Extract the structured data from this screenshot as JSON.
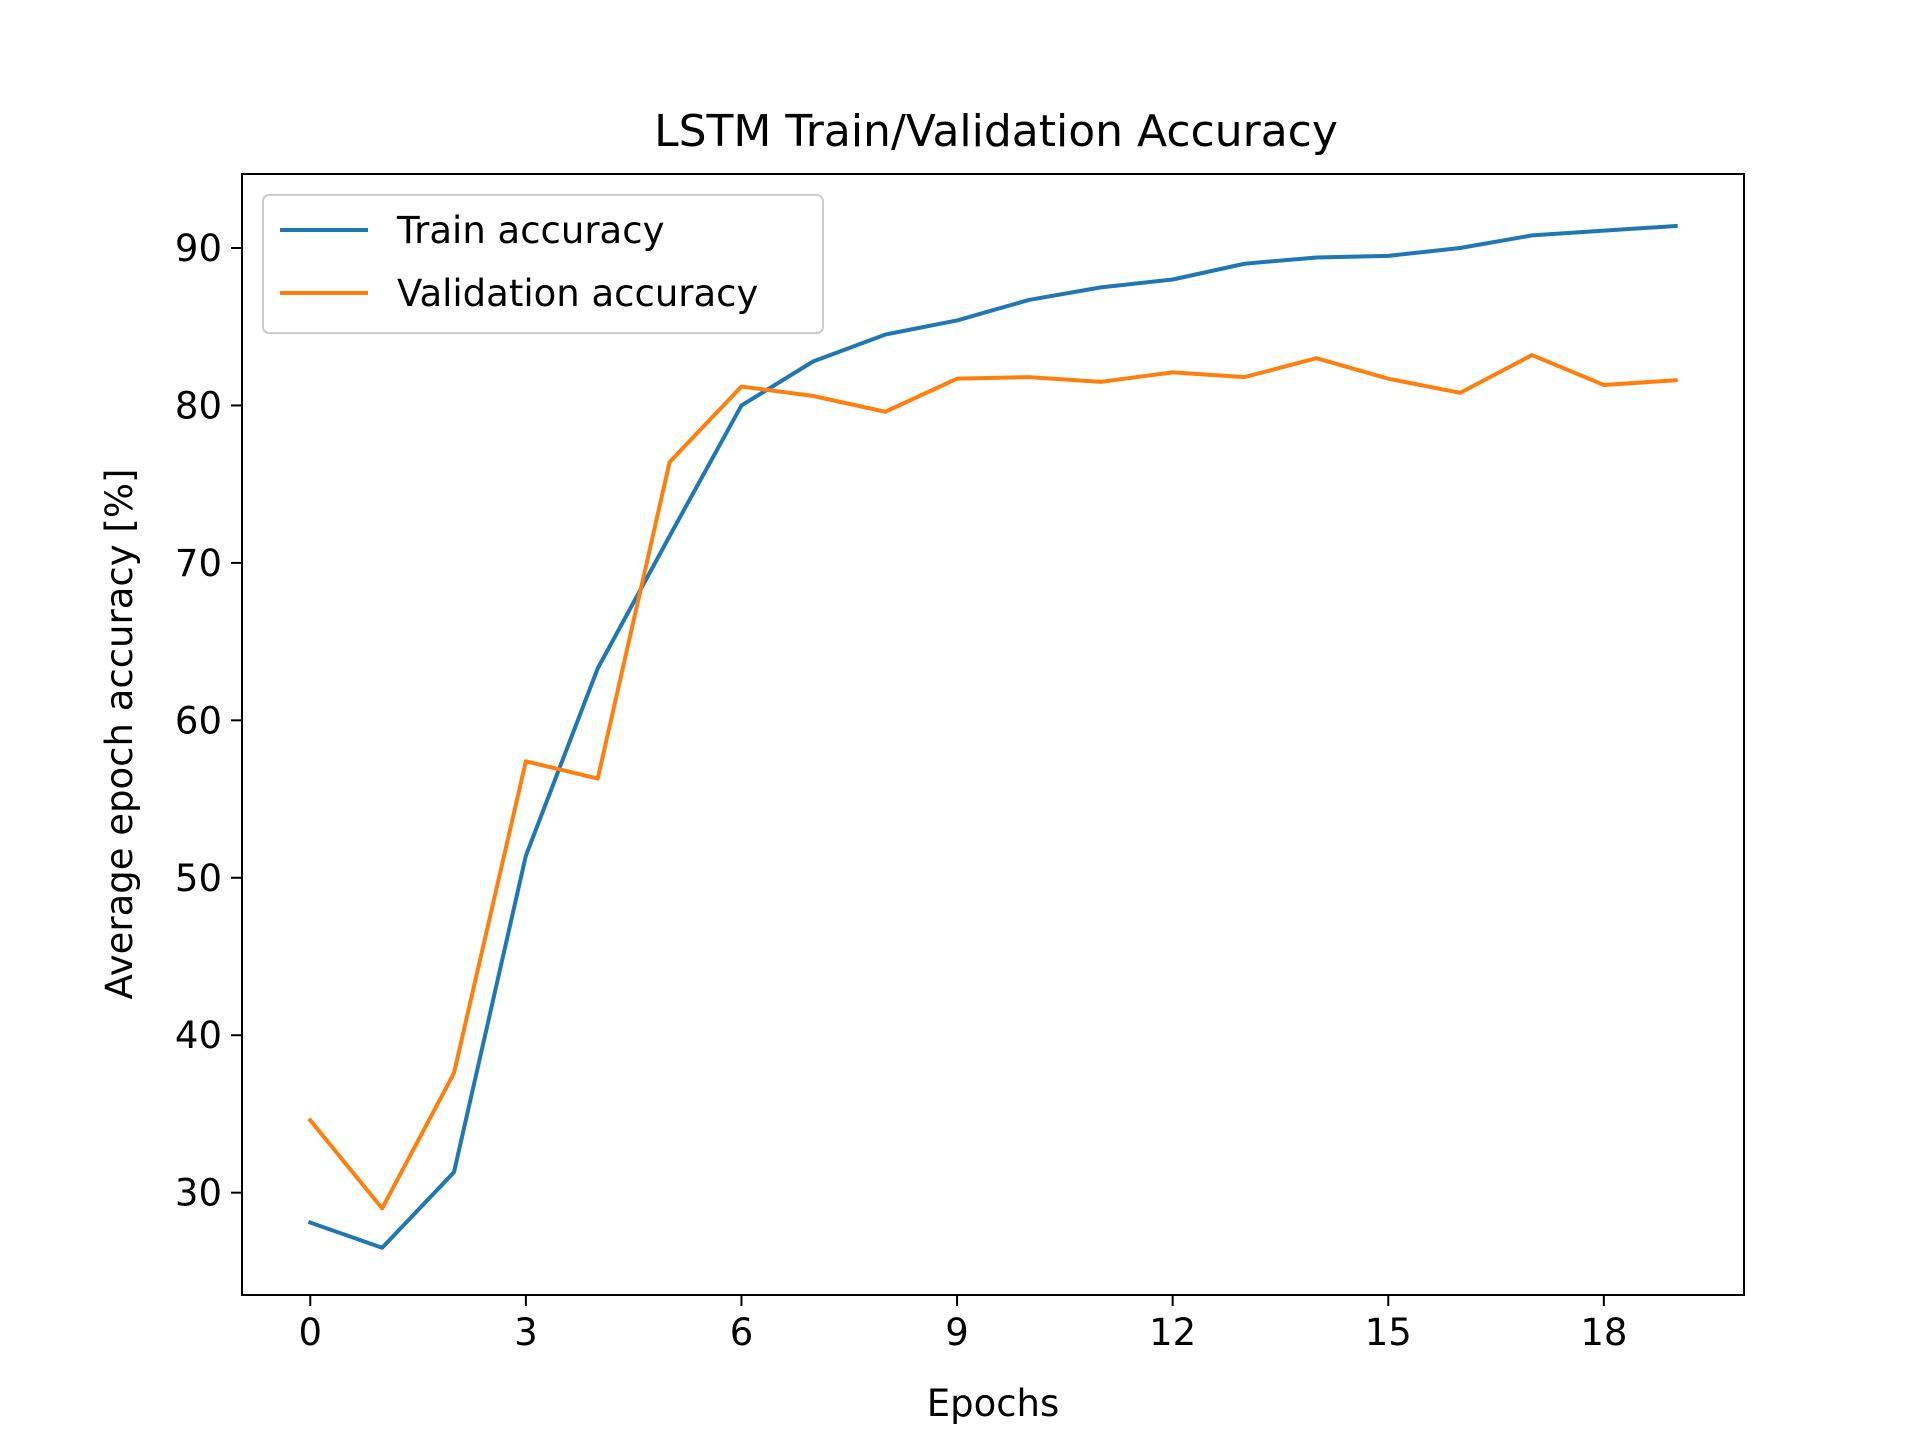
{
  "chart_data": {
    "type": "line",
    "title": "LSTM Train/Validation Accuracy",
    "xlabel": "Epochs",
    "ylabel": "Average epoch accuracy [%]",
    "x": [
      0,
      1,
      2,
      3,
      4,
      5,
      6,
      7,
      8,
      9,
      10,
      11,
      12,
      13,
      14,
      15,
      16,
      17,
      18,
      19
    ],
    "xticks": [
      0,
      3,
      6,
      9,
      12,
      15,
      18
    ],
    "yticks": [
      30,
      40,
      50,
      60,
      70,
      80,
      90
    ],
    "xlim": [
      -0.95,
      19.95
    ],
    "ylim": [
      23.5,
      94.7
    ],
    "grid": false,
    "legend_position": "upper-left",
    "series": [
      {
        "name": "Train accuracy",
        "color": "#1f77b4",
        "values": [
          28.1,
          26.5,
          31.3,
          51.4,
          63.3,
          71.7,
          80.0,
          82.8,
          84.5,
          85.4,
          86.7,
          87.5,
          88.0,
          89.0,
          89.4,
          89.5,
          90.0,
          90.8,
          91.1,
          91.4
        ]
      },
      {
        "name": "Validation accuracy",
        "color": "#ff7f0e",
        "values": [
          34.6,
          29.0,
          37.6,
          57.4,
          56.3,
          76.4,
          81.2,
          80.6,
          79.6,
          81.7,
          81.8,
          81.5,
          82.1,
          81.8,
          83.0,
          81.7,
          80.8,
          83.2,
          81.3,
          81.6
        ]
      }
    ]
  }
}
